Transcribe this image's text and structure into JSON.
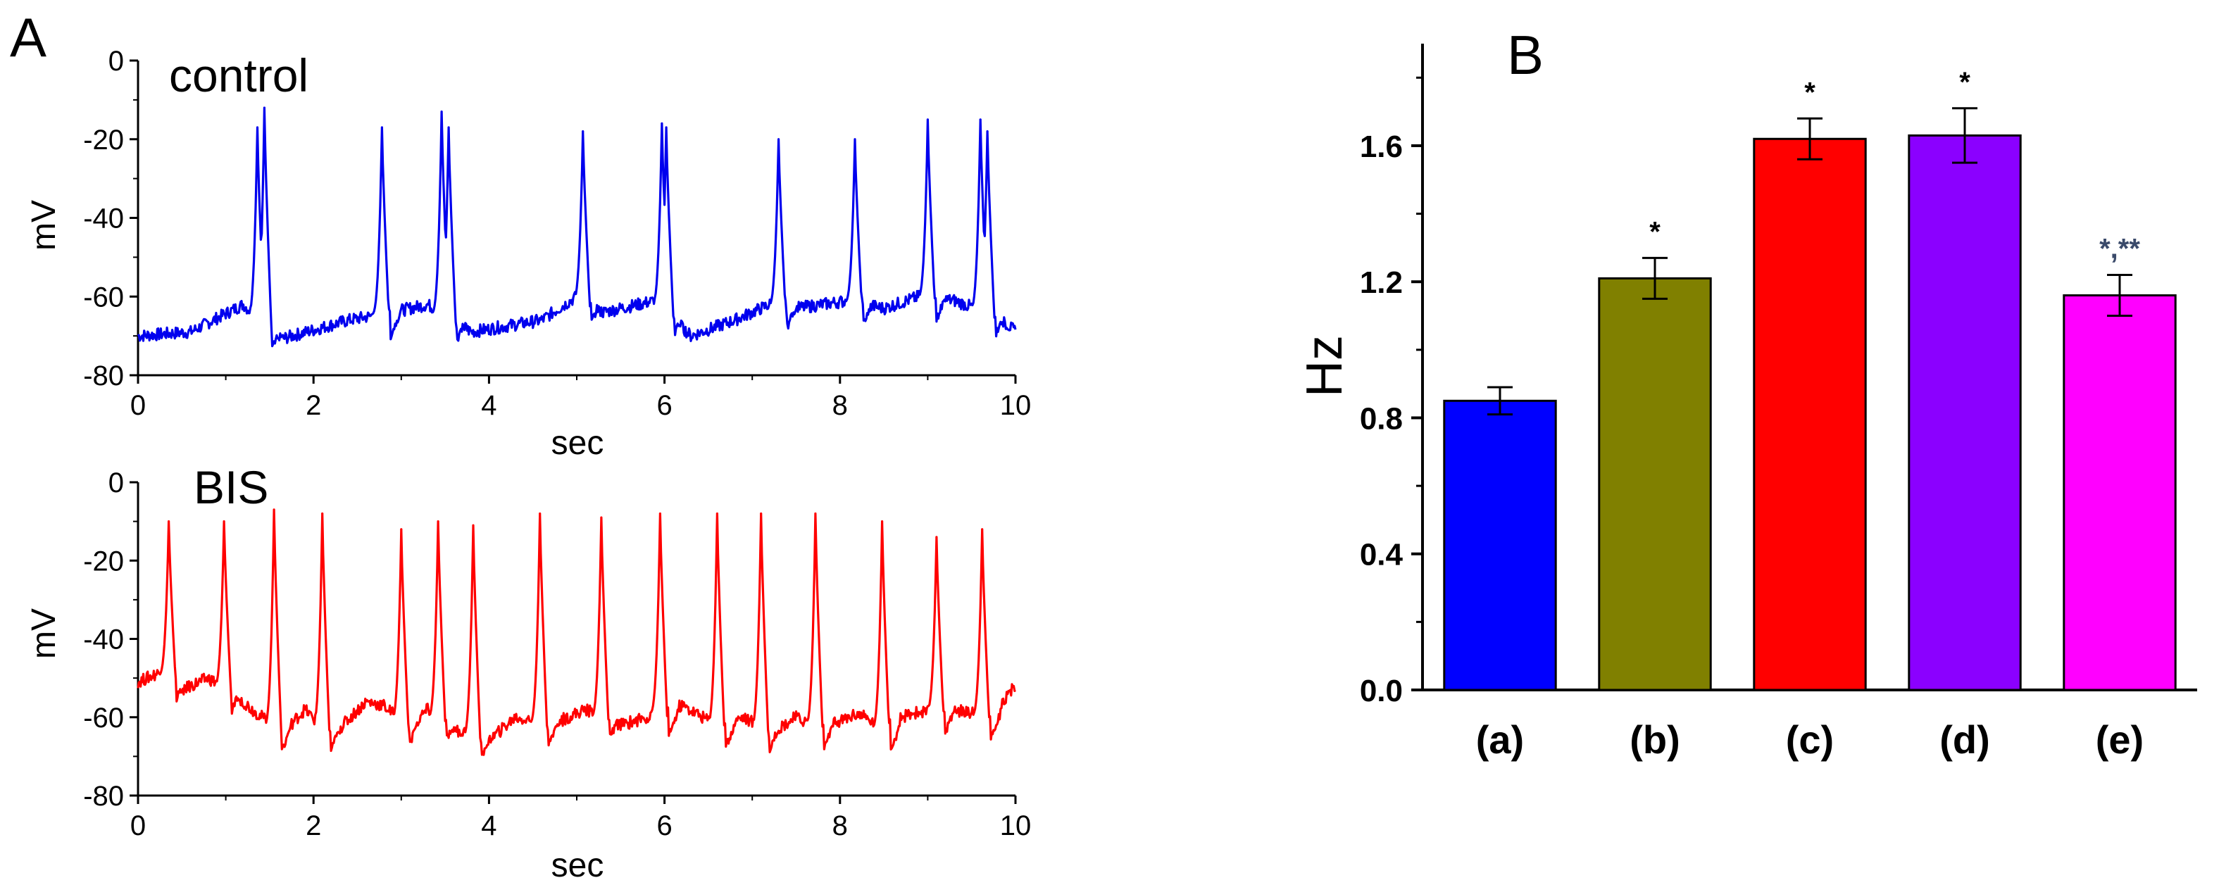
{
  "figure": {
    "panel_a_label": "A",
    "panel_b_label": "B"
  },
  "chart_data": [
    {
      "type": "line",
      "panel": "A-top",
      "title": "control",
      "xlabel": "sec",
      "ylabel": "mV",
      "xlim": [
        0,
        10
      ],
      "ylim": [
        -80,
        0
      ],
      "xticks": [
        0,
        2,
        4,
        6,
        8,
        10
      ],
      "yticks": [
        0,
        -20,
        -40,
        -60,
        -80
      ],
      "color": "#0000ee",
      "baseline": [
        [
          0,
          -70
        ],
        [
          0.6,
          -69
        ],
        [
          1.2,
          -62
        ],
        [
          1.6,
          -71
        ],
        [
          2.4,
          -66
        ],
        [
          2.9,
          -64
        ],
        [
          3.3,
          -62
        ],
        [
          3.8,
          -69
        ],
        [
          4.6,
          -66
        ],
        [
          5.0,
          -60
        ],
        [
          5.3,
          -64
        ],
        [
          5.9,
          -61
        ],
        [
          6.3,
          -70
        ],
        [
          6.8,
          -66
        ],
        [
          7.2,
          -62
        ],
        [
          7.5,
          -63
        ],
        [
          8.1,
          -61
        ],
        [
          8.5,
          -63
        ],
        [
          8.9,
          -60
        ],
        [
          9.3,
          -61
        ],
        [
          9.8,
          -65
        ],
        [
          10.0,
          -69
        ]
      ],
      "spikes": [
        [
          1.36,
          -17
        ],
        [
          1.44,
          -12
        ],
        [
          2.78,
          -17
        ],
        [
          3.46,
          -13
        ],
        [
          3.54,
          -17
        ],
        [
          5.07,
          -18
        ],
        [
          5.97,
          -16
        ],
        [
          6.02,
          -17
        ],
        [
          7.3,
          -20
        ],
        [
          8.17,
          -20
        ],
        [
          9.0,
          -15
        ],
        [
          9.6,
          -15
        ],
        [
          9.68,
          -18
        ]
      ]
    },
    {
      "type": "line",
      "panel": "A-bottom",
      "title": "BIS",
      "xlabel": "sec",
      "ylabel": "mV",
      "xlim": [
        0,
        10
      ],
      "ylim": [
        -80,
        0
      ],
      "xticks": [
        0,
        2,
        4,
        6,
        8,
        10
      ],
      "yticks": [
        0,
        -20,
        -40,
        -60,
        -80
      ],
      "color": "#ff0000",
      "baseline": [
        [
          0,
          -51
        ],
        [
          0.3,
          -48
        ],
        [
          0.5,
          -53
        ],
        [
          0.8,
          -50
        ],
        [
          1.1,
          -54
        ],
        [
          1.3,
          -58
        ],
        [
          1.65,
          -64
        ],
        [
          1.9,
          -58
        ],
        [
          2.2,
          -65
        ],
        [
          2.6,
          -56
        ],
        [
          2.8,
          -57
        ],
        [
          3.1,
          -63
        ],
        [
          3.3,
          -58
        ],
        [
          3.6,
          -63
        ],
        [
          4.0,
          -66
        ],
        [
          4.3,
          -60
        ],
        [
          4.7,
          -62
        ],
        [
          5.1,
          -58
        ],
        [
          5.5,
          -62
        ],
        [
          5.8,
          -60
        ],
        [
          6.2,
          -57
        ],
        [
          6.6,
          -62
        ],
        [
          6.9,
          -60
        ],
        [
          7.2,
          -64
        ],
        [
          7.5,
          -60
        ],
        [
          7.8,
          -63
        ],
        [
          8.2,
          -59
        ],
        [
          8.5,
          -63
        ],
        [
          8.8,
          -59
        ],
        [
          9.3,
          -58
        ],
        [
          9.7,
          -60
        ],
        [
          10.0,
          -52
        ]
      ],
      "spikes": [
        [
          0.35,
          -10
        ],
        [
          0.98,
          -10
        ],
        [
          1.55,
          -7
        ],
        [
          2.1,
          -8
        ],
        [
          3.0,
          -12
        ],
        [
          3.42,
          -10
        ],
        [
          3.82,
          -11
        ],
        [
          4.58,
          -8
        ],
        [
          5.28,
          -9
        ],
        [
          5.95,
          -8
        ],
        [
          6.6,
          -8
        ],
        [
          7.1,
          -8
        ],
        [
          7.72,
          -8
        ],
        [
          8.48,
          -10
        ],
        [
          9.1,
          -14
        ],
        [
          9.62,
          -12
        ]
      ]
    },
    {
      "type": "bar",
      "panel": "B",
      "categories": [
        "(a)",
        "(b)",
        "(c)",
        "(d)",
        "(e)"
      ],
      "values": [
        0.85,
        1.21,
        1.62,
        1.63,
        1.16
      ],
      "errors": [
        0.04,
        0.06,
        0.06,
        0.08,
        0.06
      ],
      "colors": [
        "#0000ff",
        "#808000",
        "#ff0000",
        "#8b00ff",
        "#ff00ff"
      ],
      "annotations": [
        "",
        "*",
        "*",
        "*",
        "*,**"
      ],
      "annotation_colors": [
        "#000000",
        "#000000",
        "#000000",
        "#000000",
        "#3a4a6a"
      ],
      "ylabel": "Hz",
      "xlabel": "",
      "ylim": [
        0,
        1.9
      ],
      "yticks": [
        "0.0",
        "0.4",
        "0.8",
        "1.2",
        "1.6"
      ]
    }
  ]
}
